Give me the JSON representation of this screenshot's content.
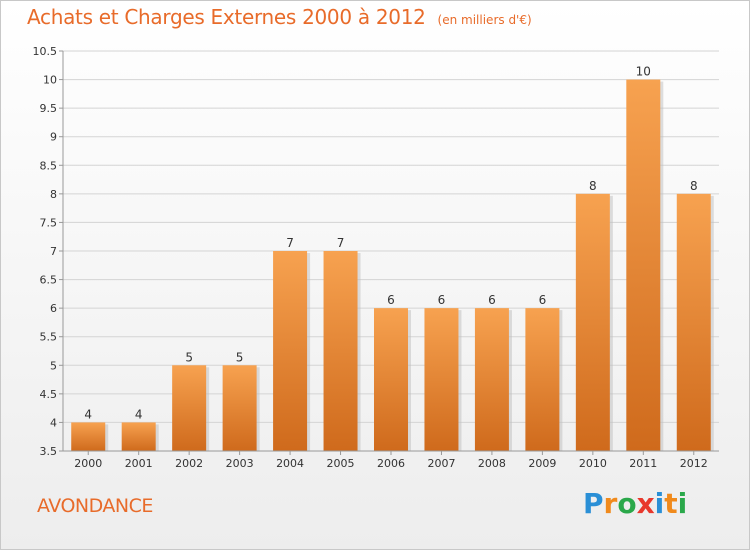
{
  "chart_data": {
    "type": "bar",
    "title": "Achats et Charges Externes 2000 à 2012",
    "subtitle": "(en milliers d'€)",
    "categories": [
      "2000",
      "2001",
      "2002",
      "2003",
      "2004",
      "2005",
      "2006",
      "2007",
      "2008",
      "2009",
      "2010",
      "2011",
      "2012"
    ],
    "values": [
      4,
      4,
      5,
      5,
      7,
      7,
      6,
      6,
      6,
      6,
      8,
      10,
      8
    ],
    "ylim": [
      3.5,
      10.5
    ],
    "yticks": [
      "3.5",
      "4",
      "4.5",
      "5",
      "5.5",
      "6",
      "6.5",
      "7",
      "7.5",
      "8",
      "8.5",
      "9",
      "9.5",
      "10",
      "10.5"
    ],
    "grid": true,
    "bar_color_top": "#f7a250",
    "bar_color_bottom": "#cf6a1c"
  },
  "footer": {
    "commune": "AVONDANCE",
    "logo_letters": [
      {
        "ch": "P",
        "color": "#2a8fd6"
      },
      {
        "ch": "r",
        "color": "#f08a1c"
      },
      {
        "ch": "o",
        "color": "#2aa84a"
      },
      {
        "ch": "x",
        "color": "#e8382c"
      },
      {
        "ch": "i",
        "color": "#2a8fd6"
      },
      {
        "ch": "t",
        "color": "#f08a1c"
      },
      {
        "ch": "i",
        "color": "#2aa84a"
      }
    ]
  }
}
